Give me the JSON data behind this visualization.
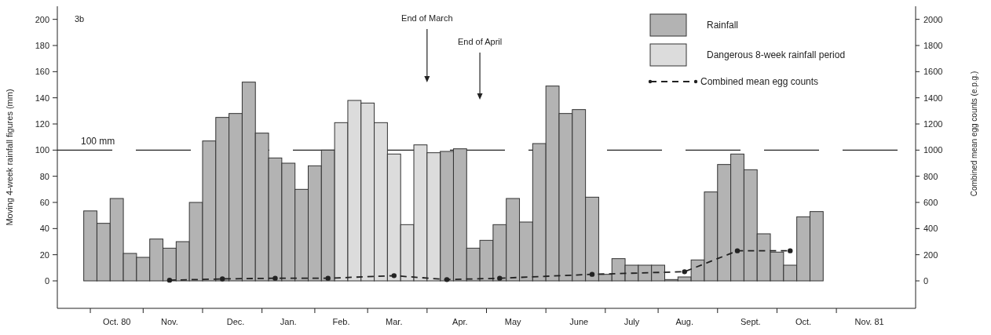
{
  "chart_data": {
    "type": "bar",
    "ylabel": "Moving 4-week rainfall figures (mm)",
    "y2label": "Combined mean egg counts (e.p.g.)",
    "categories": [
      null,
      null,
      null,
      null,
      "Oct. 80",
      null,
      null,
      null,
      "Nov.",
      null,
      null,
      null,
      null,
      "Dec.",
      null,
      null,
      null,
      "Jan.",
      null,
      null,
      null,
      "Feb.",
      null,
      null,
      null,
      "Mar.",
      null,
      null,
      null,
      null,
      "Apr.",
      null,
      null,
      null,
      "May",
      null,
      null,
      null,
      null,
      "June",
      null,
      null,
      null,
      "July",
      null,
      null,
      null,
      "Aug.",
      null,
      null,
      null,
      null,
      "Sept.",
      null,
      null,
      null,
      "Oct.",
      null,
      null,
      null,
      null,
      "Nov. 81",
      null,
      null,
      null
    ],
    "series": [
      {
        "name": "Rainfall",
        "color": "#b3b3b3",
        "values": [
          null,
          null,
          53.5,
          44,
          63,
          21,
          18,
          32,
          25,
          30,
          60,
          107,
          125,
          128,
          152,
          113,
          94,
          90,
          70,
          88,
          100,
          null,
          null,
          null,
          null,
          null,
          null,
          null,
          null,
          99,
          101,
          25,
          31,
          43,
          63,
          45,
          105,
          149,
          128,
          131,
          64,
          5,
          17,
          12,
          12,
          12,
          1,
          3,
          16,
          68,
          89,
          97,
          85,
          36,
          22,
          12,
          49,
          53,
          null,
          null,
          null,
          null,
          null,
          null,
          null
        ]
      },
      {
        "name": "Dangerous 8-week rainfall period",
        "color": "#dcdcdc",
        "values": [
          null,
          null,
          null,
          null,
          null,
          null,
          null,
          null,
          null,
          null,
          null,
          null,
          null,
          null,
          null,
          null,
          null,
          null,
          null,
          null,
          null,
          121,
          138,
          136,
          121,
          97,
          43,
          104,
          98,
          null,
          null,
          null,
          null,
          null,
          null,
          null,
          null,
          null,
          null,
          null,
          null,
          null,
          null,
          null,
          null,
          null,
          null,
          null,
          null,
          null,
          null,
          null,
          null,
          null,
          null,
          null,
          null,
          null,
          null,
          null,
          null,
          null,
          null,
          null,
          null
        ]
      },
      {
        "name": "Combined mean egg counts",
        "type": "line",
        "axis": "y2",
        "color": "#222222",
        "marker": "circle",
        "line_style": "dashed",
        "values": [
          null,
          null,
          null,
          null,
          null,
          null,
          null,
          null,
          5,
          null,
          null,
          null,
          15,
          null,
          null,
          null,
          20,
          null,
          null,
          null,
          20,
          null,
          null,
          null,
          null,
          40,
          null,
          null,
          null,
          10,
          null,
          null,
          null,
          20,
          null,
          null,
          null,
          null,
          null,
          null,
          50,
          null,
          null,
          null,
          null,
          null,
          null,
          70,
          null,
          null,
          null,
          230,
          null,
          null,
          null,
          230,
          null,
          null,
          null,
          null,
          null,
          null,
          null,
          null,
          null
        ]
      }
    ],
    "ylim": [
      -21,
      210
    ],
    "yticks": [
      0,
      20,
      40,
      60,
      80,
      100,
      120,
      140,
      160,
      180,
      200
    ],
    "y2lim": [
      -210,
      2100
    ],
    "y2ticks": [
      0,
      200,
      400,
      600,
      800,
      1000,
      1200,
      1400,
      1600,
      1800,
      2000
    ],
    "ref_lines": [
      {
        "axis": "y",
        "value": 100,
        "label": "100 mm",
        "line_style": "dashed",
        "color": "#222222"
      }
    ],
    "annotations": [
      "3b",
      "End of March",
      "End of April"
    ],
    "legend": "top right"
  }
}
